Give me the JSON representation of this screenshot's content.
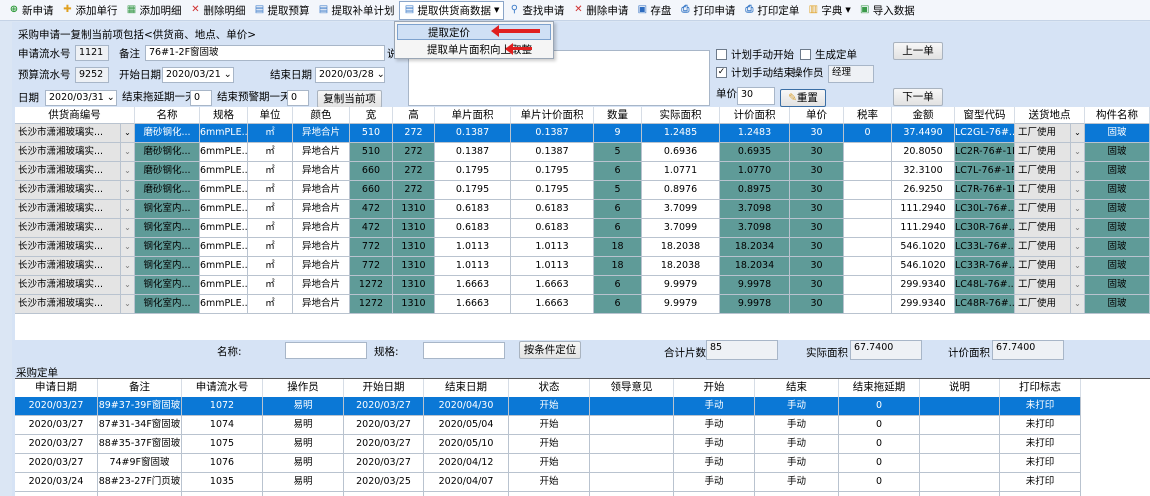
{
  "toolbar": {
    "items": [
      {
        "label": "新申请",
        "icon": "plus-circle-icon",
        "color": "#2e9a3a"
      },
      {
        "label": "添加单行",
        "icon": "plus-icon",
        "color": "#e0a020"
      },
      {
        "label": "添加明细",
        "icon": "table-add-icon",
        "color": "#3a9a4a"
      },
      {
        "label": "删除明细",
        "icon": "x-icon",
        "color": "#d03030"
      },
      {
        "label": "提取预算",
        "icon": "extract-icon",
        "color": "#3a7ac8"
      },
      {
        "label": "提取补单计划",
        "icon": "extract-icon",
        "color": "#3a7ac8"
      },
      {
        "label": "提取供货商数据",
        "icon": "extract-icon",
        "color": "#3a7ac8",
        "dropdown": true
      },
      {
        "label": "查找申请",
        "icon": "search-icon",
        "color": "#3a7ac8"
      },
      {
        "label": "删除申请",
        "icon": "x-icon",
        "color": "#d03030"
      },
      {
        "label": "存盘",
        "icon": "save-icon",
        "color": "#2d6cc0"
      },
      {
        "label": "打印申请",
        "icon": "printer-icon",
        "color": "#3a7ac8"
      },
      {
        "label": "打印定单",
        "icon": "printer-icon",
        "color": "#3a7ac8"
      },
      {
        "label": "字典",
        "icon": "book-icon",
        "color": "#e0a020",
        "dropdown": true
      },
      {
        "label": "导入数据",
        "icon": "import-icon",
        "color": "#3a9a4a"
      }
    ]
  },
  "menu": {
    "items": [
      "提取定价",
      "提取单片面积向上取整"
    ]
  },
  "header": {
    "title": "采购申请一复制当前项包括<供货商、地点、单价>",
    "apply_no_label": "申请流水号",
    "apply_no": "1121",
    "remark_label": "备注",
    "remark": "76#1-2F窗固玻",
    "remark_suffix": "说",
    "budget_no_label": "预算流水号",
    "budget_no": "9252",
    "start_label": "开始日期",
    "start": "2020/03/21",
    "end_label": "结束日期",
    "end": "2020/03/28",
    "date_label": "日期",
    "date": "2020/03/31",
    "delay_label": "结束拖延期一天",
    "delay": "0",
    "warn_label": "结束预警期一天",
    "warn": "0",
    "copy_btn": "复制当前项",
    "plan_start_label": "计划手动开始",
    "plan_start": false,
    "gen_order_label": "生成定单",
    "gen_order": false,
    "plan_end_label": "计划手动结束",
    "plan_end": true,
    "operator_label": "操作员",
    "operator": "经理",
    "price_label": "单价",
    "price": "30",
    "reset_btn": "重置",
    "prev_btn": "上一单",
    "next_btn": "下一单"
  },
  "grid1": {
    "columns": [
      "供货商编号",
      "名称",
      "规格",
      "单位",
      "颜色",
      "宽",
      "高",
      "单片面积",
      "单片计价面积",
      "数量",
      "实际面积",
      "计价面积",
      "单价",
      "税率",
      "金额",
      "窗型代码",
      "送货地点",
      "构件名称"
    ],
    "rows": [
      [
        "长沙市潇湘玻璃实...",
        "磨砂钢化...",
        "6mmPLE...",
        "㎡",
        "异地合片",
        "510",
        "272",
        "0.1387",
        "0.1387",
        "9",
        "1.2485",
        "1.2483",
        "30",
        "0",
        "37.4490",
        "LC2GL-76#...",
        "工厂使用",
        "固玻"
      ],
      [
        "长沙市潇湘玻璃实...",
        "磨砂钢化...",
        "6mmPLE...",
        "㎡",
        "异地合片",
        "510",
        "272",
        "0.1387",
        "0.1387",
        "5",
        "0.6936",
        "0.6935",
        "30",
        "",
        "20.8050",
        "LC2R-76#-1F",
        "工厂使用",
        "固玻"
      ],
      [
        "长沙市潇湘玻璃实...",
        "磨砂钢化...",
        "6mmPLE...",
        "㎡",
        "异地合片",
        "660",
        "272",
        "0.1795",
        "0.1795",
        "6",
        "1.0771",
        "1.0770",
        "30",
        "",
        "32.3100",
        "LC7L-76#-1F0",
        "工厂使用",
        "固玻"
      ],
      [
        "长沙市潇湘玻璃实...",
        "磨砂钢化...",
        "6mmPLE...",
        "㎡",
        "异地合片",
        "660",
        "272",
        "0.1795",
        "0.1795",
        "5",
        "0.8976",
        "0.8975",
        "30",
        "",
        "26.9250",
        "LC7R-76#-1F0",
        "工厂使用",
        "固玻"
      ],
      [
        "长沙市潇湘玻璃实...",
        "钢化室内...",
        "6mmPLE...",
        "㎡",
        "异地合片",
        "472",
        "1310",
        "0.6183",
        "0.6183",
        "6",
        "3.7099",
        "3.7098",
        "30",
        "",
        "111.2940",
        "LC30L-76#...",
        "工厂使用",
        "固玻"
      ],
      [
        "长沙市潇湘玻璃实...",
        "钢化室内...",
        "6mmPLE...",
        "㎡",
        "异地合片",
        "472",
        "1310",
        "0.6183",
        "0.6183",
        "6",
        "3.7099",
        "3.7098",
        "30",
        "",
        "111.2940",
        "LC30R-76#...",
        "工厂使用",
        "固玻"
      ],
      [
        "长沙市潇湘玻璃实...",
        "钢化室内...",
        "6mmPLE...",
        "㎡",
        "异地合片",
        "772",
        "1310",
        "1.0113",
        "1.0113",
        "18",
        "18.2038",
        "18.2034",
        "30",
        "",
        "546.1020",
        "LC33L-76#...",
        "工厂使用",
        "固玻"
      ],
      [
        "长沙市潇湘玻璃实...",
        "钢化室内...",
        "6mmPLE...",
        "㎡",
        "异地合片",
        "772",
        "1310",
        "1.0113",
        "1.0113",
        "18",
        "18.2038",
        "18.2034",
        "30",
        "",
        "546.1020",
        "LC33R-76#...",
        "工厂使用",
        "固玻"
      ],
      [
        "长沙市潇湘玻璃实...",
        "钢化室内...",
        "6mmPLE...",
        "㎡",
        "异地合片",
        "1272",
        "1310",
        "1.6663",
        "1.6663",
        "6",
        "9.9979",
        "9.9978",
        "30",
        "",
        "299.9340",
        "LC48L-76#...",
        "工厂使用",
        "固玻"
      ],
      [
        "长沙市潇湘玻璃实...",
        "钢化室内...",
        "6mmPLE...",
        "㎡",
        "异地合片",
        "1272",
        "1310",
        "1.6663",
        "1.6663",
        "6",
        "9.9979",
        "9.9978",
        "30",
        "",
        "299.9340",
        "LC48R-76#...",
        "工厂使用",
        "固玻"
      ]
    ],
    "selected_row": 0,
    "teal_color": "#5f9b98",
    "selected_color": "#0b78d6"
  },
  "filter": {
    "name_label": "名称:",
    "name": "",
    "spec_label": "规格:",
    "spec": "",
    "locate_btn": "按条件定位",
    "total_pieces_label": "合计片数",
    "total_pieces": "85",
    "actual_area_label": "实际面积",
    "actual_area": "67.7400",
    "price_area_label": "计价面积",
    "price_area": "67.7400"
  },
  "orders": {
    "title": "采购定单",
    "columns": [
      "申请日期",
      "备注",
      "申请流水号",
      "操作员",
      "开始日期",
      "结束日期",
      "状态",
      "领导意见",
      "开始",
      "结束",
      "结束拖延期",
      "说明",
      "打印标志"
    ],
    "rows": [
      [
        "2020/03/27",
        "89#37-39F窗固玻",
        "1072",
        "易明",
        "2020/03/27",
        "2020/04/30",
        "开始",
        "",
        "手动",
        "手动",
        "0",
        "",
        "未打印"
      ],
      [
        "2020/03/27",
        "87#31-34F窗固玻",
        "1074",
        "易明",
        "2020/03/27",
        "2020/05/04",
        "开始",
        "",
        "手动",
        "手动",
        "0",
        "",
        "未打印"
      ],
      [
        "2020/03/27",
        "88#35-37F窗固玻",
        "1075",
        "易明",
        "2020/03/27",
        "2020/05/10",
        "开始",
        "",
        "手动",
        "手动",
        "0",
        "",
        "未打印"
      ],
      [
        "2020/03/27",
        "74#9F窗固玻",
        "1076",
        "易明",
        "2020/03/27",
        "2020/04/12",
        "开始",
        "",
        "手动",
        "手动",
        "0",
        "",
        "未打印"
      ],
      [
        "2020/03/24",
        "88#23-27F门页玻",
        "1035",
        "易明",
        "2020/03/25",
        "2020/04/07",
        "开始",
        "",
        "手动",
        "手动",
        "0",
        "",
        "未打印"
      ]
    ],
    "selected_row": 0
  }
}
